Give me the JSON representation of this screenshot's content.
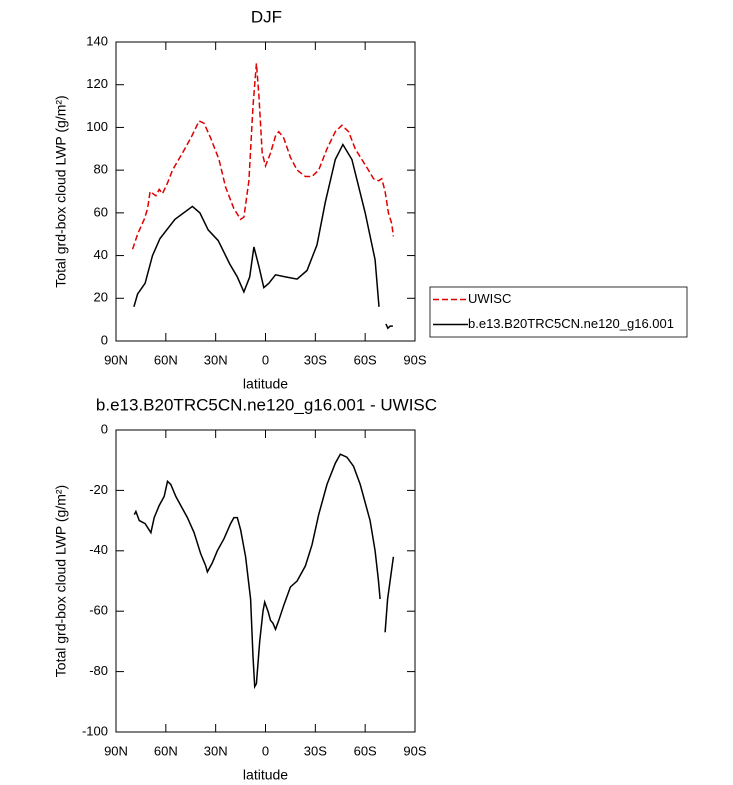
{
  "chart_data": [
    {
      "type": "line",
      "title": "DJF",
      "xlabel": "latitude",
      "ylabel": "Total grd-box cloud LWP (g/m²)",
      "xlim": [
        90,
        -90
      ],
      "xticks": [
        {
          "value": 90,
          "label": "90N"
        },
        {
          "value": 60,
          "label": "60N"
        },
        {
          "value": 30,
          "label": "30N"
        },
        0,
        {
          "value": -30,
          "label": "30S"
        },
        {
          "value": -60,
          "label": "60S"
        },
        {
          "value": -90,
          "label": "90S"
        }
      ],
      "ylim": [
        0,
        140
      ],
      "yticks": [
        0,
        20,
        40,
        60,
        80,
        100,
        120,
        140
      ],
      "legend": "right",
      "series": [
        {
          "name": "UWISC",
          "color": "#e00000",
          "line_style": "dashed",
          "x": [
            80,
            77,
            73,
            71,
            69.5,
            66,
            64,
            62,
            59,
            56,
            50,
            45,
            40,
            37,
            33,
            28,
            24,
            19,
            15,
            13,
            10,
            7.5,
            5.5,
            4,
            2,
            0,
            -3,
            -6,
            -8,
            -11,
            -15,
            -19,
            -24,
            -28,
            -32,
            -37,
            -42,
            -46,
            -50,
            -54,
            -58,
            -62,
            -65,
            -68,
            -70,
            -72,
            -74,
            -76,
            -77
          ],
          "values": [
            43,
            50,
            57,
            62,
            70,
            68,
            71,
            69,
            74,
            80,
            88,
            95,
            103,
            102,
            95,
            85,
            72,
            62,
            57,
            58,
            75,
            110,
            130,
            115,
            88,
            82,
            88,
            96,
            98,
            95,
            86,
            80,
            77,
            77,
            80,
            90,
            98,
            101,
            98,
            90,
            85,
            80,
            76,
            75,
            76,
            70,
            60,
            55,
            49
          ]
        },
        {
          "name": "b.e13.B20TRC5CN.ne120_g16.001",
          "color": "#000000",
          "line_style": "solid",
          "x": [
            79.2,
            77,
            72.5,
            68,
            63.5,
            54.5,
            44,
            39.5,
            34.5,
            28.5,
            21.5,
            17,
            13,
            9.5,
            7,
            4,
            1,
            -2,
            -6,
            -12,
            -19,
            -25,
            -31,
            -36,
            -42,
            -46.6,
            -52,
            -60,
            -66,
            -68.3,
            -70,
            -72.5,
            -73.7,
            -75,
            -76.7
          ],
          "values": [
            16,
            22,
            27,
            40,
            48,
            57,
            63,
            60,
            52,
            47,
            36,
            30,
            23,
            30,
            44,
            35,
            25,
            27,
            31,
            30,
            29,
            33,
            45,
            65,
            85,
            92,
            85,
            60,
            38,
            16,
            null,
            8,
            6,
            7,
            7
          ]
        }
      ]
    },
    {
      "type": "line",
      "title": "b.e13.B20TRC5CN.ne120_g16.001 - UWISC",
      "xlabel": "latitude",
      "ylabel": "Total grd-box cloud LWP (g/m²)",
      "xlim": [
        90,
        -90
      ],
      "xticks": [
        {
          "value": 90,
          "label": "90N"
        },
        {
          "value": 60,
          "label": "60N"
        },
        {
          "value": 30,
          "label": "30N"
        },
        0,
        {
          "value": -30,
          "label": "30S"
        },
        {
          "value": -60,
          "label": "60S"
        },
        {
          "value": -90,
          "label": "90S"
        }
      ],
      "ylim": [
        -100,
        0
      ],
      "yticks": [
        -100,
        -80,
        -60,
        -40,
        -20,
        0
      ],
      "series": [
        {
          "color": "#000000",
          "line_style": "solid",
          "x": [
            79,
            78,
            76,
            72.5,
            69,
            67,
            64,
            61,
            59,
            57,
            54,
            50,
            47,
            43,
            39,
            36,
            35,
            32,
            29,
            25,
            21,
            19,
            17,
            15,
            12,
            9,
            7.5,
            6.5,
            5.5,
            3.5,
            1.5,
            0.5,
            -1.5,
            -3,
            -4.5,
            -6,
            -8,
            -11,
            -15,
            -19,
            -24,
            -28,
            -32,
            -37,
            -42,
            -45,
            -49,
            -53,
            -57,
            -63,
            -66,
            -68,
            -69,
            -70,
            -72,
            -73.5,
            -75,
            -77
          ],
          "values": [
            -28,
            -27,
            -30,
            -31,
            -34,
            -29,
            -25,
            -22,
            -17,
            -18,
            -22,
            -26,
            -29,
            -34,
            -41,
            -45,
            -47,
            -44,
            -40,
            -36,
            -31,
            -29,
            -29,
            -33,
            -42,
            -56,
            -75,
            -85,
            -84,
            -70,
            -60,
            -57,
            -60,
            -63,
            -64,
            -66,
            -63,
            -58,
            -52,
            -50,
            -45,
            -38,
            -28,
            -18,
            -11,
            -8,
            -9,
            -12,
            -18,
            -30,
            -40,
            -50,
            -56,
            null,
            -67,
            -56,
            -50,
            -42
          ]
        }
      ]
    }
  ]
}
